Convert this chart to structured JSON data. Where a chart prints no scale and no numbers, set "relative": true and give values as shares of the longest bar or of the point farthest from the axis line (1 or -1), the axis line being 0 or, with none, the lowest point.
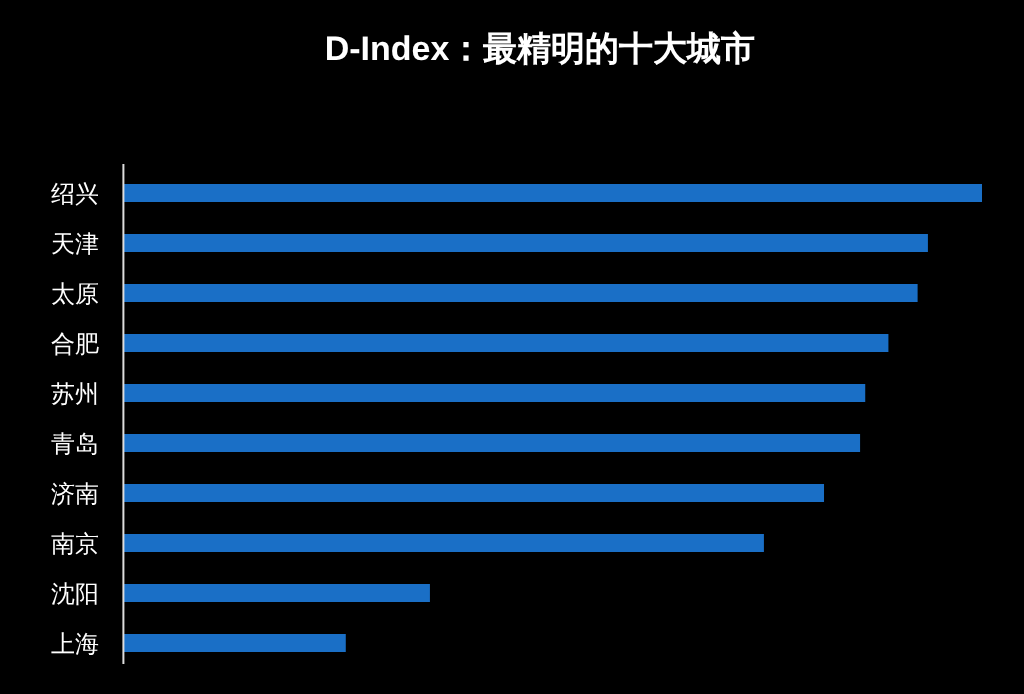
{
  "chart_data": {
    "type": "bar",
    "orientation": "horizontal",
    "relative": true,
    "title": "D-Index：最精明的十大城市",
    "categories": [
      "绍兴",
      "天津",
      "太原",
      "合肥",
      "苏州",
      "青岛",
      "济南",
      "南京",
      "沈阳",
      "上海"
    ],
    "values": [
      1,
      0.937,
      0.925,
      0.891,
      0.864,
      0.858,
      0.816,
      0.746,
      0.357,
      0.259
    ],
    "color": "#1a6fc6"
  }
}
